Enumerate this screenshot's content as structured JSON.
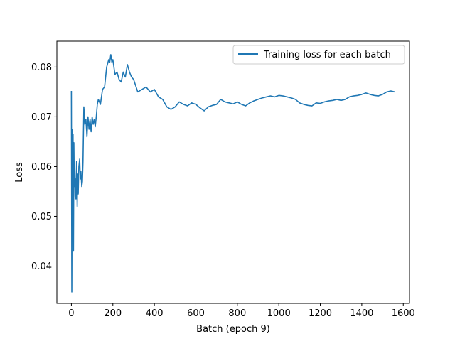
{
  "chart_data": {
    "type": "line",
    "title": "",
    "xlabel": "Batch (epoch 9)",
    "ylabel": "Loss",
    "xlim": [
      -70,
      1630
    ],
    "ylim": [
      0.0325,
      0.0852
    ],
    "xticks": [
      0,
      200,
      400,
      600,
      800,
      1000,
      1200,
      1400,
      1600
    ],
    "yticks": [
      0.04,
      0.05,
      0.06,
      0.07,
      0.08
    ],
    "x_tick_labels": [
      "0",
      "200",
      "400",
      "600",
      "800",
      "1000",
      "1200",
      "1400",
      "1600"
    ],
    "y_tick_labels": [
      "0.04",
      "0.05",
      "0.06",
      "0.07",
      "0.08"
    ],
    "grid": false,
    "legend_position": "top-right",
    "series": [
      {
        "name": "Training loss for each batch",
        "color": "#1f77b4",
        "x": [
          0,
          2,
          4,
          6,
          8,
          10,
          12,
          14,
          16,
          18,
          20,
          22,
          25,
          28,
          30,
          33,
          36,
          40,
          43,
          46,
          50,
          53,
          56,
          60,
          65,
          70,
          75,
          80,
          85,
          90,
          95,
          100,
          105,
          110,
          115,
          120,
          125,
          130,
          140,
          150,
          160,
          170,
          180,
          185,
          190,
          195,
          200,
          210,
          220,
          230,
          240,
          250,
          260,
          270,
          280,
          290,
          300,
          320,
          340,
          360,
          380,
          400,
          420,
          440,
          460,
          480,
          500,
          520,
          540,
          560,
          580,
          600,
          620,
          640,
          660,
          680,
          700,
          720,
          740,
          760,
          780,
          800,
          820,
          840,
          860,
          880,
          900,
          920,
          940,
          960,
          980,
          1000,
          1020,
          1040,
          1060,
          1080,
          1100,
          1120,
          1140,
          1160,
          1180,
          1200,
          1220,
          1240,
          1260,
          1280,
          1300,
          1320,
          1340,
          1360,
          1380,
          1400,
          1420,
          1440,
          1460,
          1480,
          1500,
          1520,
          1540,
          1560
        ],
        "y": [
          0.0752,
          0.0348,
          0.0675,
          0.0552,
          0.0665,
          0.043,
          0.0648,
          0.056,
          0.061,
          0.054,
          0.0575,
          0.0535,
          0.061,
          0.052,
          0.0585,
          0.0545,
          0.06,
          0.0615,
          0.0575,
          0.059,
          0.056,
          0.057,
          0.061,
          0.072,
          0.0685,
          0.0695,
          0.066,
          0.07,
          0.0675,
          0.0695,
          0.067,
          0.07,
          0.0685,
          0.0695,
          0.068,
          0.07,
          0.0725,
          0.0735,
          0.0725,
          0.0755,
          0.076,
          0.08,
          0.0815,
          0.081,
          0.0825,
          0.081,
          0.0815,
          0.0785,
          0.079,
          0.0775,
          0.077,
          0.079,
          0.078,
          0.0805,
          0.079,
          0.078,
          0.0775,
          0.075,
          0.0755,
          0.076,
          0.075,
          0.0755,
          0.074,
          0.0735,
          0.072,
          0.0715,
          0.072,
          0.073,
          0.0725,
          0.0722,
          0.0728,
          0.0725,
          0.0718,
          0.0712,
          0.072,
          0.0723,
          0.0725,
          0.0735,
          0.073,
          0.0728,
          0.0726,
          0.073,
          0.0725,
          0.0722,
          0.0728,
          0.0732,
          0.0735,
          0.0738,
          0.074,
          0.0742,
          0.074,
          0.0743,
          0.0742,
          0.074,
          0.0738,
          0.0735,
          0.0728,
          0.0725,
          0.0723,
          0.0722,
          0.0728,
          0.0727,
          0.073,
          0.0732,
          0.0733,
          0.0735,
          0.0733,
          0.0735,
          0.074,
          0.0742,
          0.0743,
          0.0745,
          0.0748,
          0.0745,
          0.0743,
          0.0742,
          0.0745,
          0.075,
          0.0752,
          0.075
        ]
      }
    ]
  }
}
